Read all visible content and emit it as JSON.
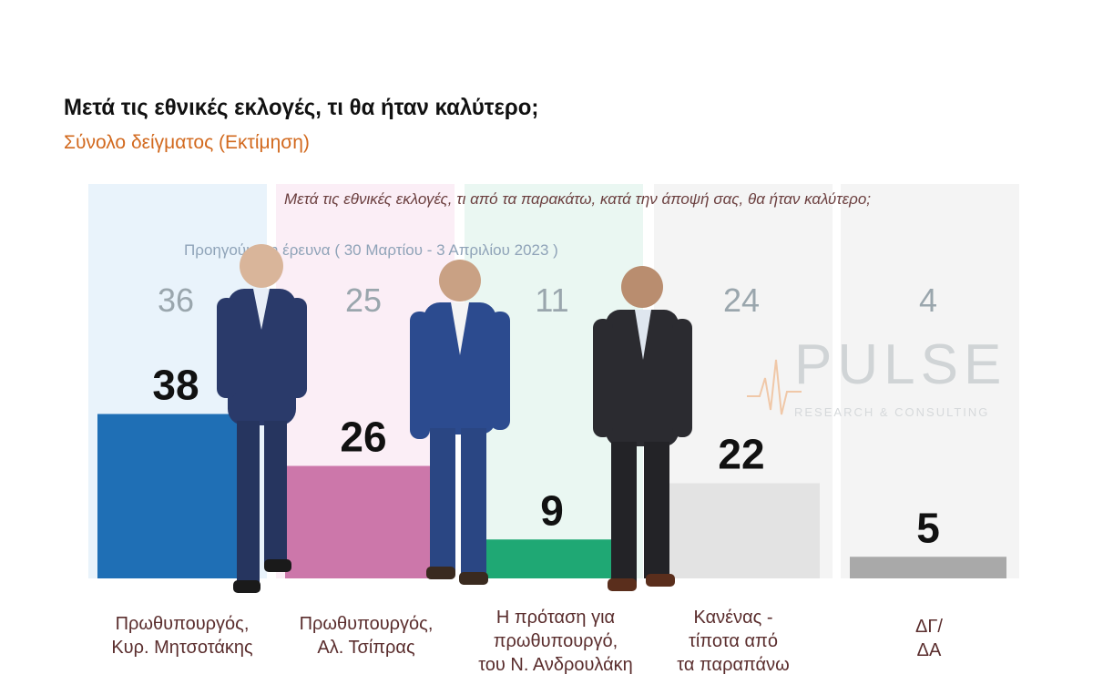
{
  "header": {
    "title": "Μετά τις εθνικές εκλογές, τι θα ήταν καλύτερο;",
    "subtitle": "Σύνολο δείγματος  (Εκτίμηση)"
  },
  "logo": {
    "name": "PULSE",
    "tagline": "RESEARCH & CONSULTING"
  },
  "chart_data": {
    "type": "bar",
    "title": "Μετά τις εθνικές εκλογές, τι από τα παρακάτω, κατά την άποψή σας, θα ήταν καλύτερο;",
    "previous_label": "Προηγούμενη έρευνα  ( 30 Μαρτίου - 3 Απριλίου  2023 )",
    "categories": [
      "Πρωθυπουργός,\nΚυρ. Μητσοτάκης",
      "Πρωθυπουργός,\nΑλ. Τσίπρας",
      "Η πρόταση για\nπρωθυπουργό,\nτου Ν. Ανδρουλάκη",
      "Κανένας -\nτίποτα από\nτα παραπάνω",
      "ΔΓ/\nΔΑ"
    ],
    "series": [
      {
        "name": "Προηγούμενη έρευνα  ( 30 Μαρτίου - 3 Απριλίου  2023 )",
        "values": [
          36,
          25,
          11,
          24,
          4
        ]
      },
      {
        "values": [
          38,
          26,
          9,
          22,
          5
        ]
      }
    ],
    "colors": [
      "#1f6fb5",
      "#cc77aa",
      "#1fa874",
      "#e3e3e3",
      "#a9a9a9"
    ],
    "background_colors": [
      "#e9f3fb",
      "#fbeef6",
      "#eaf7f2",
      "#f4f4f4",
      "#f4f4f4"
    ],
    "ylim": [
      0,
      45
    ]
  }
}
